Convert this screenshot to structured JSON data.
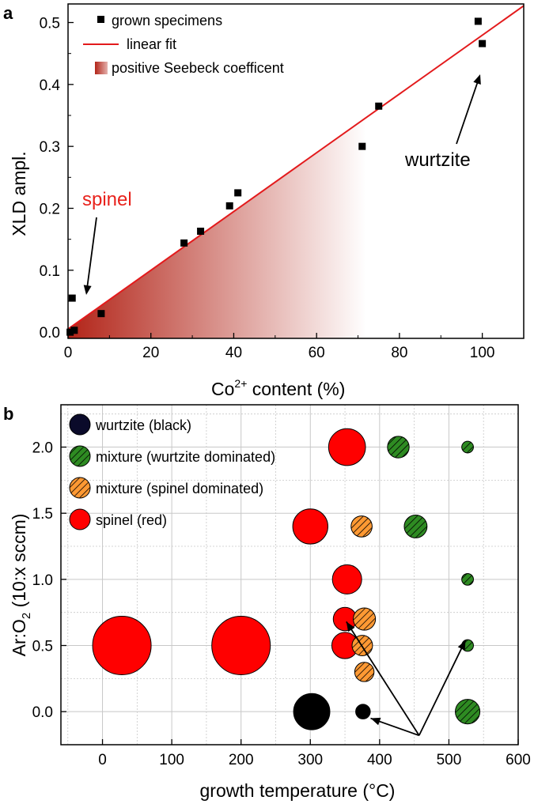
{
  "chart_data": [
    {
      "type": "scatter",
      "panel_label": "a",
      "xlabel_main": "Co",
      "xlabel_sup": "2+",
      "xlabel_rest": " content (%)",
      "ylabel": "XLD ampl.",
      "xlim": [
        0,
        110
      ],
      "ylim": [
        -0.01,
        0.53
      ],
      "xticks": [
        0,
        20,
        40,
        60,
        80,
        100
      ],
      "yticks": [
        0.0,
        0.1,
        0.2,
        0.3,
        0.4,
        0.5
      ],
      "xtick_labels": [
        "0",
        "20",
        "40",
        "60",
        "80",
        "100"
      ],
      "ytick_labels": [
        "0.0",
        "0.1",
        "0.2",
        "0.3",
        "0.4",
        "0.5"
      ],
      "grid": false,
      "legend_position": "top-left",
      "legend": [
        "grown specimens",
        "linear fit",
        "positive Seebeck coefficent"
      ],
      "series": [
        {
          "name": "grown specimens",
          "x": [
            0.5,
            1.0,
            1.5,
            8,
            28,
            32,
            39,
            41,
            71,
            75,
            99,
            100
          ],
          "y": [
            0.0,
            0.055,
            0.003,
            0.03,
            0.144,
            0.163,
            0.204,
            0.225,
            0.3,
            0.365,
            0.502,
            0.466
          ]
        }
      ],
      "fit": {
        "name": "linear fit",
        "x": [
          0,
          110
        ],
        "y": [
          0.005,
          0.527
        ]
      },
      "shaded_region": {
        "name": "positive Seebeck coefficent",
        "x_range": [
          0,
          72
        ]
      },
      "annotations": [
        {
          "text": "spinel",
          "color": "#e8221c"
        },
        {
          "text": "wurtzite",
          "color": "#000000"
        }
      ],
      "colors": {
        "fit": "#e31a1c",
        "shade": "#b22418",
        "points": "#000000"
      }
    },
    {
      "type": "scatter",
      "panel_label": "b",
      "xlabel": "growth temperature (°C)",
      "ylabel_main": "Ar:O",
      "ylabel_sub": "2",
      "ylabel_rest": " (10:x sccm)",
      "xlim": [
        -60,
        600
      ],
      "ylim": [
        -0.25,
        2.32
      ],
      "xticks": [
        0,
        100,
        200,
        300,
        400,
        500,
        600
      ],
      "yticks": [
        0.0,
        0.5,
        1.0,
        1.5,
        2.0
      ],
      "xtick_labels": [
        "0",
        "100",
        "200",
        "300",
        "400",
        "500",
        "600"
      ],
      "ytick_labels": [
        "0.0",
        "0.5",
        "1.0",
        "1.5",
        "2.0"
      ],
      "grid": true,
      "legend_position": "top-left",
      "legend": [
        "wurtzite (black)",
        "mixture (wurtzite dominated)",
        "mixture (spinel dominated)",
        "spinel (red)"
      ],
      "points": [
        {
          "cls": "spinel",
          "x": 28,
          "y": 0.5,
          "size": 1.0
        },
        {
          "cls": "spinel",
          "x": 200,
          "y": 0.5,
          "size": 1.0
        },
        {
          "cls": "spinel",
          "x": 300,
          "y": 1.4,
          "size": 0.6
        },
        {
          "cls": "spinel",
          "x": 353,
          "y": 2.0,
          "size": 0.63
        },
        {
          "cls": "spinel",
          "x": 353,
          "y": 1.0,
          "size": 0.5
        },
        {
          "cls": "spinel",
          "x": 350,
          "y": 0.7,
          "size": 0.4
        },
        {
          "cls": "spinel",
          "x": 350,
          "y": 0.5,
          "size": 0.45
        },
        {
          "cls": "wurtzite",
          "x": 302,
          "y": 0.0,
          "size": 0.62
        },
        {
          "cls": "wurtzite",
          "x": 376,
          "y": 0.0,
          "size": 0.25
        },
        {
          "cls": "mix-spinel",
          "x": 378,
          "y": 0.7,
          "size": 0.38
        },
        {
          "cls": "mix-spinel",
          "x": 375,
          "y": 0.5,
          "size": 0.35
        },
        {
          "cls": "mix-spinel",
          "x": 378,
          "y": 0.3,
          "size": 0.33
        },
        {
          "cls": "mix-spinel",
          "x": 374,
          "y": 1.4,
          "size": 0.36
        },
        {
          "cls": "mix-wurtzite",
          "x": 427,
          "y": 2.0,
          "size": 0.37
        },
        {
          "cls": "mix-wurtzite",
          "x": 452,
          "y": 1.4,
          "size": 0.39
        },
        {
          "cls": "mix-wurtzite",
          "x": 527,
          "y": 2.0,
          "size": 0.2
        },
        {
          "cls": "mix-wurtzite",
          "x": 527,
          "y": 1.0,
          "size": 0.2
        },
        {
          "cls": "mix-wurtzite",
          "x": 527,
          "y": 0.5,
          "size": 0.2
        },
        {
          "cls": "mix-wurtzite",
          "x": 527,
          "y": 0.0,
          "size": 0.42
        }
      ],
      "arrow_origin": {
        "x": 457,
        "y": -0.18
      },
      "arrow_targets": [
        {
          "x": 352,
          "y": 0.68
        },
        {
          "x": 387,
          "y": -0.05
        },
        {
          "x": 524,
          "y": 0.54
        }
      ],
      "colors": {
        "spinel": "#ff0000",
        "wurtzite": "#000000",
        "wurtzite_legend": "#0a0a2a",
        "mix_wurtzite": "#2e8b22",
        "mix_spinel": "#ff9933",
        "grid": "#c8c8c8"
      }
    }
  ]
}
